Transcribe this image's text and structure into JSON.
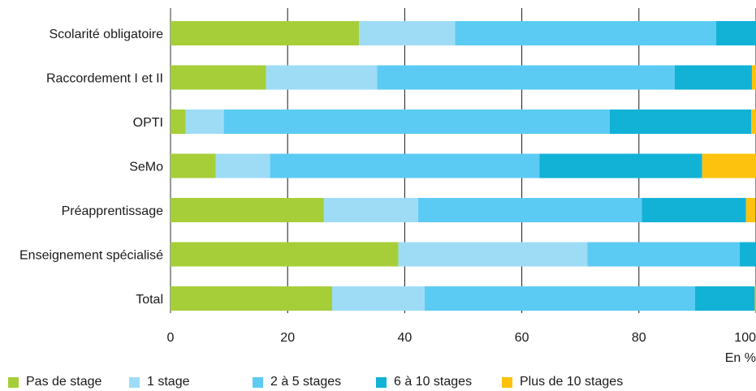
{
  "chart_data": {
    "type": "bar",
    "orientation": "horizontal",
    "stacked": true,
    "categories": [
      "Scolarité obligatoire",
      "Raccordement I et II",
      "OPTI",
      "SeMo",
      "Préapprentissage",
      "Enseignement spécialisé",
      "Total"
    ],
    "series": [
      {
        "name": "Pas de stage",
        "color": "#a6ce39",
        "values": [
          32.2,
          16.3,
          2.6,
          7.7,
          26.2,
          38.9,
          27.6
        ]
      },
      {
        "name": "1 stage",
        "color": "#9edcf6",
        "values": [
          16.4,
          19.0,
          6.5,
          9.3,
          16.1,
          32.3,
          15.8
        ]
      },
      {
        "name": "2 à 5 stages",
        "color": "#5ccbf3",
        "values": [
          44.6,
          50.8,
          65.9,
          46.0,
          38.2,
          26.0,
          46.2
        ]
      },
      {
        "name": "6 à 10 stages",
        "color": "#12b2d6",
        "values": [
          7.4,
          13.2,
          24.2,
          27.8,
          17.8,
          3.1,
          10.2
        ]
      },
      {
        "name": "Plus de 10 stages",
        "color": "#fcc20e",
        "values": [
          0.2,
          0.9,
          0.8,
          9.7,
          1.6,
          0.0,
          0.7
        ]
      }
    ],
    "x_ticks": [
      "0",
      "20",
      "40",
      "60",
      "80",
      "100"
    ],
    "xlim": [
      0,
      100
    ],
    "xlabel": "En %",
    "grid": "vertical",
    "legend_position": "bottom"
  }
}
